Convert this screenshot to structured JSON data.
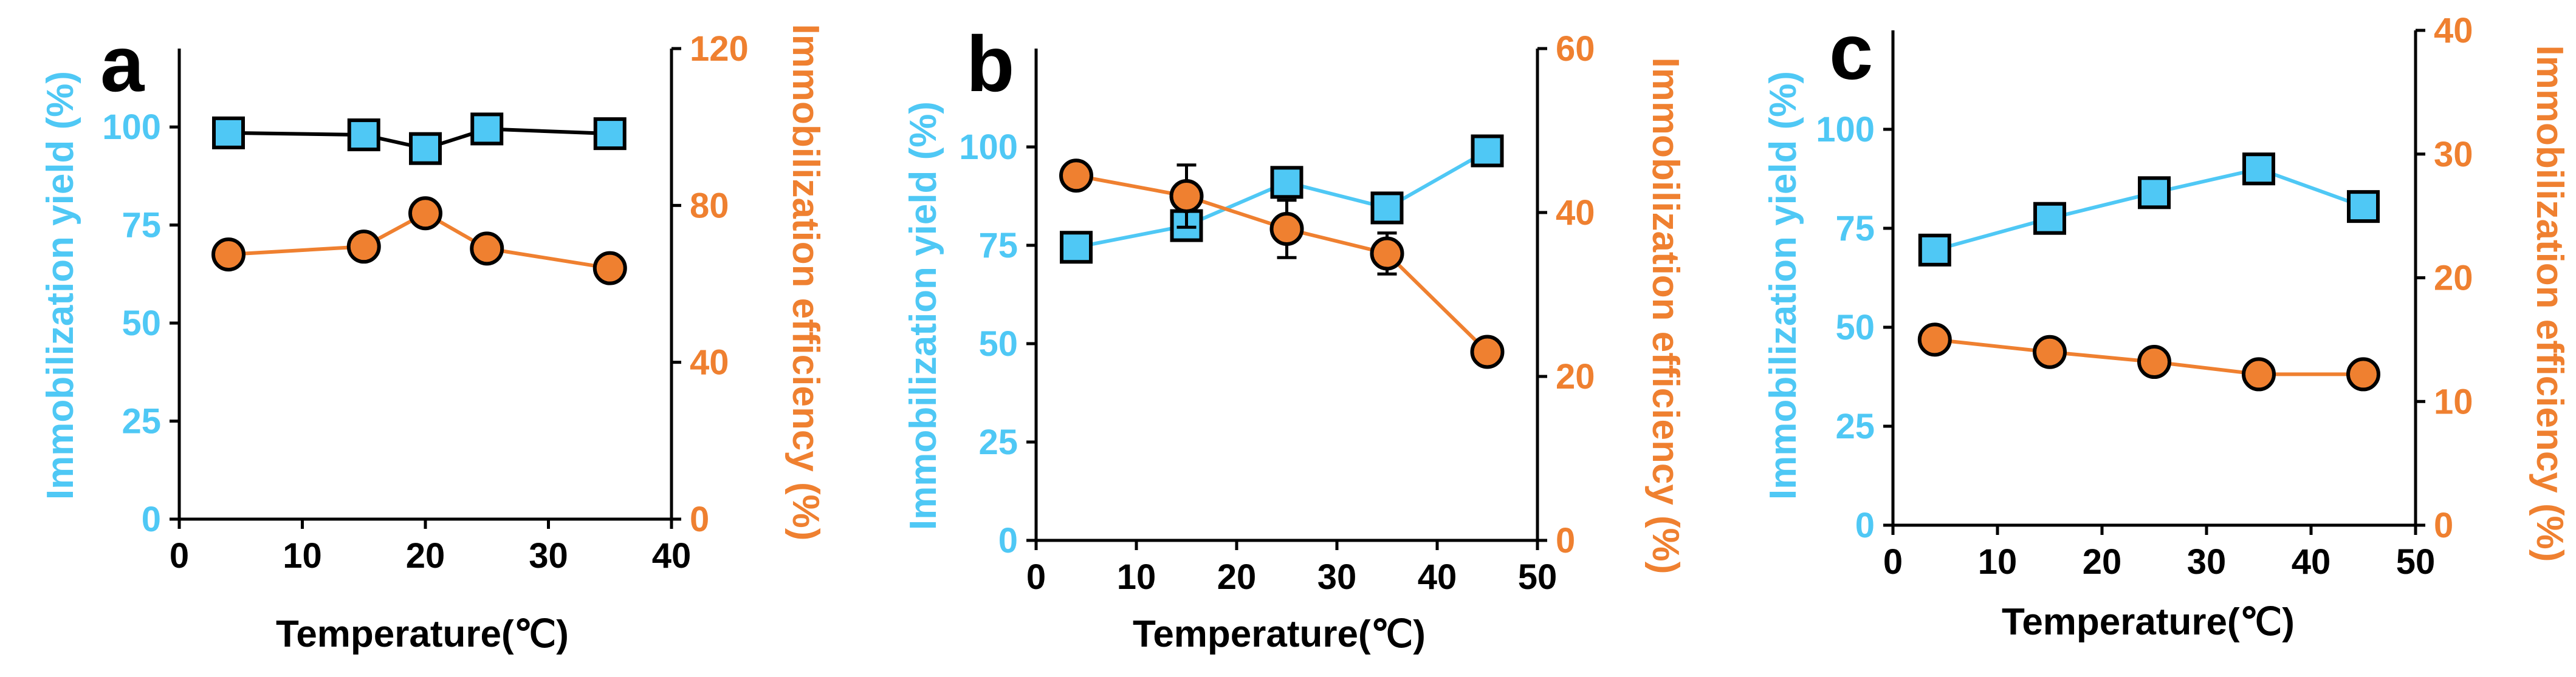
{
  "colors": {
    "yield": "#4fc8f5",
    "efficiency": "#ef8030",
    "axis": "#000000",
    "marker_edge": "#000000"
  },
  "chart_data": [
    {
      "type": "line",
      "panel": "a",
      "xlabel": "Temperature(℃)",
      "ylabel_left": "Immobilization yield (%)",
      "ylabel_right": "Immobilization efficiency (%)",
      "xlim": [
        0,
        40
      ],
      "x_ticks": [
        "0",
        "10",
        "20",
        "30",
        "40"
      ],
      "ylim_left": [
        0,
        120
      ],
      "y_left_ticks": [
        "0",
        "25",
        "50",
        "75",
        "100"
      ],
      "ylim_right": [
        0,
        120
      ],
      "y_right_ticks": [
        "0",
        "40",
        "80",
        "120"
      ],
      "series": [
        {
          "name": "Immobilization yield (%)",
          "axis": "left",
          "marker": "square",
          "line_color": "#000000",
          "x": [
            4,
            15,
            20,
            25,
            35
          ],
          "values": [
            98.5,
            98,
            94.5,
            99.5,
            98.3
          ],
          "errors": [
            0,
            0,
            0,
            0,
            0
          ]
        },
        {
          "name": "Immobilization efficiency (%)",
          "axis": "right",
          "marker": "circle",
          "line_color": "#ef8030",
          "x": [
            4,
            15,
            20,
            25,
            35
          ],
          "values": [
            67.5,
            69.5,
            78,
            69,
            64
          ],
          "errors": [
            0,
            0,
            0,
            0,
            0
          ]
        }
      ]
    },
    {
      "type": "line",
      "panel": "b",
      "xlabel": "Temperature(℃)",
      "ylabel_left": "Immobilization yield (%)",
      "ylabel_right": "Immobilization efficiency (%)",
      "xlim": [
        0,
        50
      ],
      "x_ticks": [
        "0",
        "10",
        "20",
        "30",
        "40",
        "50"
      ],
      "ylim_left": [
        0,
        125
      ],
      "y_left_ticks": [
        "0",
        "25",
        "50",
        "75",
        "100"
      ],
      "ylim_right": [
        0,
        60
      ],
      "y_right_ticks": [
        "0",
        "20",
        "40",
        "60"
      ],
      "series": [
        {
          "name": "Immobilization yield (%)",
          "axis": "left",
          "marker": "square",
          "line_color": "#4fc8f5",
          "x": [
            4,
            15,
            25,
            35,
            45
          ],
          "values": [
            74.5,
            80,
            91,
            84.5,
            99
          ],
          "errors": [
            0,
            0,
            0,
            0,
            0
          ]
        },
        {
          "name": "Immobilization efficiency (%)",
          "axis": "right",
          "marker": "circle",
          "line_color": "#ef8030",
          "x": [
            4,
            15,
            25,
            35,
            45
          ],
          "values": [
            44.5,
            42,
            38,
            35,
            23
          ],
          "errors": [
            1.5,
            3.8,
            3.5,
            2.5,
            1.5
          ]
        }
      ]
    },
    {
      "type": "line",
      "panel": "c",
      "xlabel": "Temperature(℃)",
      "ylabel_left": "Immobilization yield (%)",
      "ylabel_right": "Immobilization efficiency (%)",
      "xlim": [
        0,
        50
      ],
      "x_ticks": [
        "0",
        "10",
        "20",
        "30",
        "40",
        "50"
      ],
      "ylim_left": [
        0,
        125
      ],
      "y_left_ticks": [
        "0",
        "25",
        "50",
        "75",
        "100"
      ],
      "ylim_right": [
        0,
        40
      ],
      "y_right_ticks": [
        "0",
        "10",
        "20",
        "30",
        "40"
      ],
      "series": [
        {
          "name": "Immobilization yield (%)",
          "axis": "left",
          "marker": "square",
          "line_color": "#4fc8f5",
          "x": [
            4,
            15,
            25,
            35,
            45
          ],
          "values": [
            69.5,
            77.5,
            84,
            90,
            80.5
          ],
          "errors": [
            0,
            0,
            0,
            0,
            0
          ]
        },
        {
          "name": "Immobilization efficiency (%)",
          "axis": "right",
          "marker": "circle",
          "line_color": "#ef8030",
          "x": [
            4,
            15,
            25,
            35,
            45
          ],
          "values": [
            15,
            14,
            13.2,
            12.2,
            12.2
          ],
          "errors": [
            0,
            0,
            0,
            1,
            0
          ]
        }
      ]
    }
  ]
}
